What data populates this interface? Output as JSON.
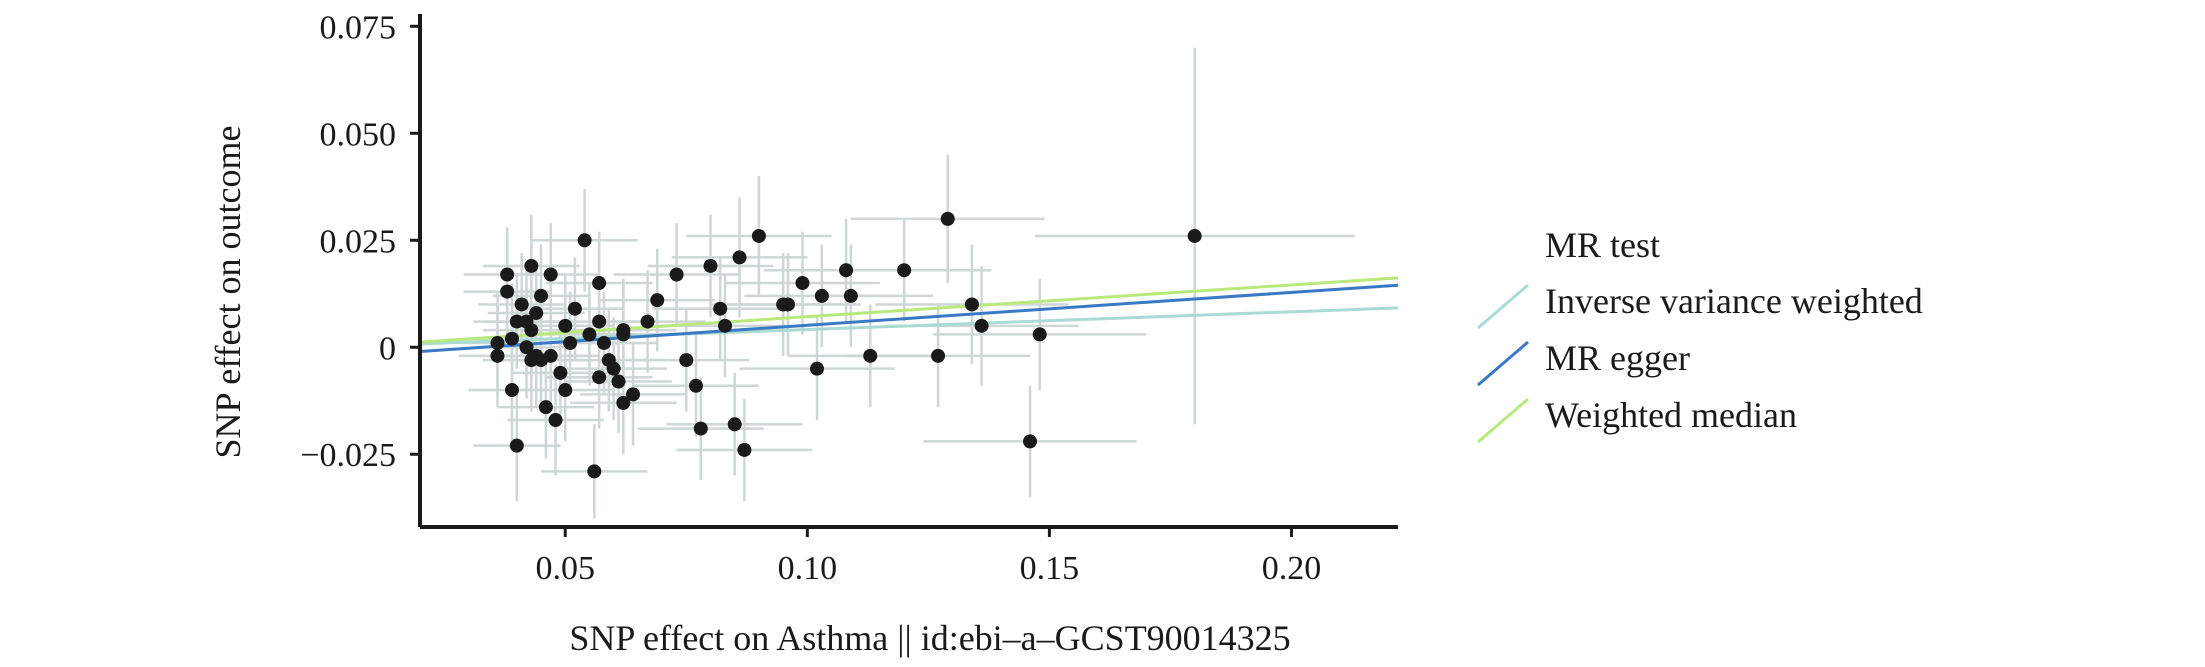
{
  "colors": {
    "axis": "#1a1a1a",
    "point": "#1a1a1a",
    "errorbar": "#cfd6d6",
    "ivw": "#a9dbd4",
    "egger": "#3a79c3",
    "median": "#b9e87d"
  },
  "chart_data": {
    "type": "scatter",
    "title": "",
    "xlabel": "SNP effect on Asthma || id:ebi–a–GCST90014325",
    "ylabel": "SNP effect on outcome",
    "xlim": [
      0.02,
      0.222
    ],
    "ylim": [
      -0.042,
      0.076
    ],
    "x_ticks": [
      0.05,
      0.1,
      0.15,
      0.2
    ],
    "x_tick_labels": [
      "0.05",
      "0.10",
      "0.15",
      "0.20"
    ],
    "y_ticks": [
      -0.025,
      0,
      0.025,
      0.05,
      0.075
    ],
    "y_tick_labels": [
      "−0.025",
      "0",
      "0.025",
      "0.050",
      "0.075"
    ],
    "grid": false,
    "legend": {
      "title": "MR test",
      "placement": "right",
      "items": [
        {
          "label": "Inverse variance weighted",
          "color": "#a9dbd4"
        },
        {
          "label": "MR egger",
          "color": "#3a79c3"
        },
        {
          "label": "Weighted median",
          "color": "#b9e87d"
        }
      ]
    },
    "lines": [
      {
        "name": "Inverse variance weighted",
        "color": "#a9dbd4",
        "x": [
          0.02,
          0.222
        ],
        "y": [
          0.0008,
          0.0092
        ]
      },
      {
        "name": "MR egger",
        "color": "#3a79c3",
        "x": [
          0.02,
          0.222
        ],
        "y": [
          -0.001,
          0.0145
        ]
      },
      {
        "name": "Weighted median",
        "color": "#b9e87d",
        "x": [
          0.02,
          0.222
        ],
        "y": [
          0.0012,
          0.0162
        ]
      }
    ],
    "points": [
      {
        "x": 0.038,
        "y": 0.017,
        "xerr": 0.009,
        "yerr": 0.011
      },
      {
        "x": 0.038,
        "y": 0.013,
        "xerr": 0.009,
        "yerr": 0.012
      },
      {
        "x": 0.036,
        "y": 0.001,
        "xerr": 0.008,
        "yerr": 0.012
      },
      {
        "x": 0.036,
        "y": -0.002,
        "xerr": 0.008,
        "yerr": 0.012
      },
      {
        "x": 0.039,
        "y": 0.002,
        "xerr": 0.009,
        "yerr": 0.013
      },
      {
        "x": 0.039,
        "y": -0.01,
        "xerr": 0.009,
        "yerr": 0.013
      },
      {
        "x": 0.04,
        "y": 0.006,
        "xerr": 0.009,
        "yerr": 0.011
      },
      {
        "x": 0.04,
        "y": -0.023,
        "xerr": 0.009,
        "yerr": 0.013
      },
      {
        "x": 0.041,
        "y": 0.01,
        "xerr": 0.009,
        "yerr": 0.012
      },
      {
        "x": 0.042,
        "y": 0.006,
        "xerr": 0.009,
        "yerr": 0.012
      },
      {
        "x": 0.042,
        "y": 0.0,
        "xerr": 0.009,
        "yerr": 0.012
      },
      {
        "x": 0.043,
        "y": 0.019,
        "xerr": 0.01,
        "yerr": 0.012
      },
      {
        "x": 0.043,
        "y": 0.004,
        "xerr": 0.01,
        "yerr": 0.012
      },
      {
        "x": 0.043,
        "y": -0.003,
        "xerr": 0.01,
        "yerr": 0.012
      },
      {
        "x": 0.044,
        "y": 0.008,
        "xerr": 0.01,
        "yerr": 0.012
      },
      {
        "x": 0.044,
        "y": -0.002,
        "xerr": 0.01,
        "yerr": 0.012
      },
      {
        "x": 0.045,
        "y": 0.012,
        "xerr": 0.01,
        "yerr": 0.012
      },
      {
        "x": 0.045,
        "y": -0.003,
        "xerr": 0.01,
        "yerr": 0.012
      },
      {
        "x": 0.046,
        "y": -0.014,
        "xerr": 0.01,
        "yerr": 0.012
      },
      {
        "x": 0.047,
        "y": 0.017,
        "xerr": 0.01,
        "yerr": 0.012
      },
      {
        "x": 0.047,
        "y": -0.002,
        "xerr": 0.01,
        "yerr": 0.012
      },
      {
        "x": 0.048,
        "y": -0.017,
        "xerr": 0.01,
        "yerr": 0.013
      },
      {
        "x": 0.049,
        "y": -0.006,
        "xerr": 0.01,
        "yerr": 0.012
      },
      {
        "x": 0.05,
        "y": 0.005,
        "xerr": 0.01,
        "yerr": 0.012
      },
      {
        "x": 0.05,
        "y": -0.01,
        "xerr": 0.01,
        "yerr": 0.012
      },
      {
        "x": 0.051,
        "y": 0.001,
        "xerr": 0.01,
        "yerr": 0.012
      },
      {
        "x": 0.052,
        "y": 0.009,
        "xerr": 0.01,
        "yerr": 0.012
      },
      {
        "x": 0.054,
        "y": 0.025,
        "xerr": 0.011,
        "yerr": 0.012
      },
      {
        "x": 0.055,
        "y": 0.003,
        "xerr": 0.011,
        "yerr": 0.012
      },
      {
        "x": 0.056,
        "y": -0.029,
        "xerr": 0.011,
        "yerr": 0.011
      },
      {
        "x": 0.057,
        "y": 0.015,
        "xerr": 0.011,
        "yerr": 0.012
      },
      {
        "x": 0.057,
        "y": 0.006,
        "xerr": 0.011,
        "yerr": 0.012
      },
      {
        "x": 0.057,
        "y": -0.007,
        "xerr": 0.011,
        "yerr": 0.012
      },
      {
        "x": 0.058,
        "y": 0.001,
        "xerr": 0.011,
        "yerr": 0.012
      },
      {
        "x": 0.059,
        "y": -0.003,
        "xerr": 0.011,
        "yerr": 0.012
      },
      {
        "x": 0.06,
        "y": -0.005,
        "xerr": 0.011,
        "yerr": 0.012
      },
      {
        "x": 0.061,
        "y": -0.008,
        "xerr": 0.011,
        "yerr": 0.012
      },
      {
        "x": 0.062,
        "y": 0.004,
        "xerr": 0.011,
        "yerr": 0.012
      },
      {
        "x": 0.062,
        "y": 0.003,
        "xerr": 0.011,
        "yerr": 0.012
      },
      {
        "x": 0.062,
        "y": -0.013,
        "xerr": 0.011,
        "yerr": 0.012
      },
      {
        "x": 0.064,
        "y": -0.011,
        "xerr": 0.011,
        "yerr": 0.012
      },
      {
        "x": 0.067,
        "y": 0.006,
        "xerr": 0.012,
        "yerr": 0.012
      },
      {
        "x": 0.069,
        "y": 0.011,
        "xerr": 0.012,
        "yerr": 0.012
      },
      {
        "x": 0.073,
        "y": 0.017,
        "xerr": 0.013,
        "yerr": 0.012
      },
      {
        "x": 0.075,
        "y": -0.003,
        "xerr": 0.013,
        "yerr": 0.012
      },
      {
        "x": 0.077,
        "y": -0.009,
        "xerr": 0.013,
        "yerr": 0.012
      },
      {
        "x": 0.078,
        "y": -0.019,
        "xerr": 0.013,
        "yerr": 0.012
      },
      {
        "x": 0.08,
        "y": 0.019,
        "xerr": 0.013,
        "yerr": 0.012
      },
      {
        "x": 0.082,
        "y": 0.009,
        "xerr": 0.014,
        "yerr": 0.012
      },
      {
        "x": 0.083,
        "y": 0.005,
        "xerr": 0.014,
        "yerr": 0.012
      },
      {
        "x": 0.085,
        "y": -0.018,
        "xerr": 0.014,
        "yerr": 0.012
      },
      {
        "x": 0.086,
        "y": 0.021,
        "xerr": 0.014,
        "yerr": 0.014
      },
      {
        "x": 0.087,
        "y": -0.024,
        "xerr": 0.014,
        "yerr": 0.012
      },
      {
        "x": 0.09,
        "y": 0.026,
        "xerr": 0.015,
        "yerr": 0.014
      },
      {
        "x": 0.095,
        "y": 0.01,
        "xerr": 0.015,
        "yerr": 0.012
      },
      {
        "x": 0.096,
        "y": 0.01,
        "xerr": 0.015,
        "yerr": 0.012
      },
      {
        "x": 0.099,
        "y": 0.015,
        "xerr": 0.016,
        "yerr": 0.012
      },
      {
        "x": 0.102,
        "y": -0.005,
        "xerr": 0.016,
        "yerr": 0.012
      },
      {
        "x": 0.103,
        "y": 0.012,
        "xerr": 0.016,
        "yerr": 0.012
      },
      {
        "x": 0.108,
        "y": 0.018,
        "xerr": 0.017,
        "yerr": 0.012
      },
      {
        "x": 0.109,
        "y": 0.012,
        "xerr": 0.017,
        "yerr": 0.012
      },
      {
        "x": 0.113,
        "y": -0.002,
        "xerr": 0.017,
        "yerr": 0.012
      },
      {
        "x": 0.12,
        "y": 0.018,
        "xerr": 0.018,
        "yerr": 0.012
      },
      {
        "x": 0.127,
        "y": -0.002,
        "xerr": 0.019,
        "yerr": 0.012
      },
      {
        "x": 0.129,
        "y": 0.03,
        "xerr": 0.02,
        "yerr": 0.015
      },
      {
        "x": 0.134,
        "y": 0.01,
        "xerr": 0.02,
        "yerr": 0.014
      },
      {
        "x": 0.136,
        "y": 0.005,
        "xerr": 0.02,
        "yerr": 0.014
      },
      {
        "x": 0.146,
        "y": -0.022,
        "xerr": 0.022,
        "yerr": 0.013
      },
      {
        "x": 0.148,
        "y": 0.003,
        "xerr": 0.022,
        "yerr": 0.013
      },
      {
        "x": 0.18,
        "y": 0.026,
        "xerr": 0.033,
        "yerr": 0.044
      }
    ]
  }
}
